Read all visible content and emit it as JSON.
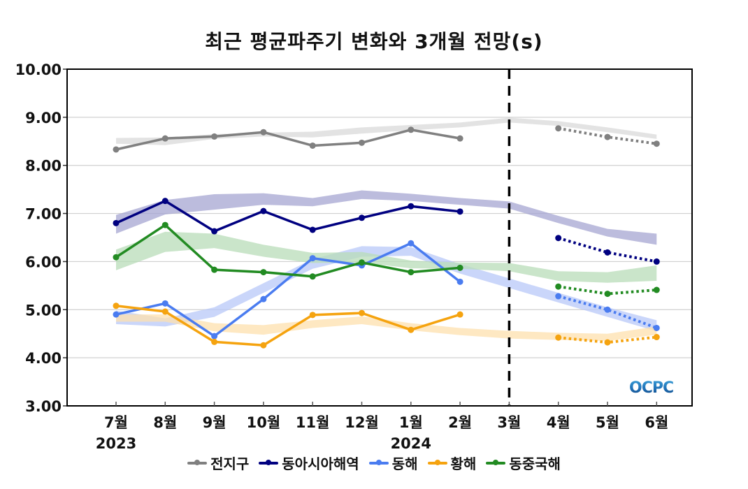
{
  "chart_data": {
    "type": "line",
    "title": "최근 평균파주기 변화와 3개월 전망(s)",
    "xlabel": "",
    "ylabel": "",
    "ylim": [
      3.0,
      10.0
    ],
    "yticks": [
      "3.00",
      "4.00",
      "5.00",
      "6.00",
      "7.00",
      "8.00",
      "9.00",
      "10.00"
    ],
    "categories": [
      "7월",
      "8월",
      "9월",
      "10월",
      "11월",
      "12월",
      "1월",
      "2월",
      "3월",
      "4월",
      "5월",
      "6월"
    ],
    "year_labels": [
      {
        "label": "2023",
        "at_category": "7월"
      },
      {
        "label": "2024",
        "at_category": "1월"
      }
    ],
    "forecast_divider_at": "3월",
    "grid": true,
    "legend_position": "bottom",
    "series": [
      {
        "name": "전지구",
        "color": "#808080",
        "band_color": "#d9d9d9",
        "observed": [
          8.33,
          8.56,
          8.6,
          8.69,
          8.41,
          8.47,
          8.74,
          8.56,
          null,
          null,
          null,
          null
        ],
        "forecast": [
          null,
          null,
          null,
          null,
          null,
          null,
          null,
          null,
          null,
          8.77,
          8.59,
          8.45
        ],
        "band_upper": [
          8.57,
          8.58,
          8.65,
          8.68,
          8.7,
          8.79,
          8.84,
          8.89,
          8.99,
          8.92,
          8.79,
          8.64
        ],
        "band_lower": [
          8.45,
          8.42,
          8.55,
          8.6,
          8.58,
          8.66,
          8.73,
          8.79,
          8.89,
          8.82,
          8.69,
          8.55
        ]
      },
      {
        "name": "동아시아해역",
        "color": "#000080",
        "band_color": "#a5a5d2",
        "observed": [
          6.8,
          7.26,
          6.63,
          7.05,
          6.66,
          6.91,
          7.15,
          7.04,
          null,
          null,
          null,
          null
        ],
        "forecast": [
          null,
          null,
          null,
          null,
          null,
          null,
          null,
          null,
          null,
          6.49,
          6.19,
          6.0
        ],
        "band_upper": [
          6.97,
          7.28,
          7.4,
          7.42,
          7.32,
          7.48,
          7.41,
          7.32,
          7.25,
          6.95,
          6.68,
          6.58
        ],
        "band_lower": [
          6.58,
          6.98,
          7.08,
          7.18,
          7.15,
          7.3,
          7.26,
          7.18,
          7.1,
          6.8,
          6.52,
          6.35
        ]
      },
      {
        "name": "동해",
        "color": "#4a7cf0",
        "band_color": "#b8c8f8",
        "observed": [
          4.9,
          5.13,
          4.45,
          5.22,
          6.07,
          5.92,
          6.38,
          5.58,
          null,
          null,
          null,
          null
        ],
        "forecast": [
          null,
          null,
          null,
          null,
          null,
          null,
          null,
          null,
          null,
          5.28,
          5.0,
          4.62
        ],
        "band_upper": [
          4.98,
          4.82,
          5.05,
          5.55,
          6.05,
          6.32,
          6.3,
          5.95,
          5.65,
          5.35,
          5.05,
          4.78
        ],
        "band_lower": [
          4.7,
          4.65,
          4.85,
          5.35,
          5.85,
          6.1,
          6.12,
          5.75,
          5.45,
          5.15,
          4.85,
          4.55
        ]
      },
      {
        "name": "황해",
        "color": "#f5a30f",
        "band_color": "#fde0ae",
        "observed": [
          5.08,
          4.96,
          4.33,
          4.26,
          4.89,
          4.93,
          4.58,
          4.9,
          null,
          null,
          null,
          null
        ],
        "forecast": [
          null,
          null,
          null,
          null,
          null,
          null,
          null,
          null,
          null,
          4.42,
          4.32,
          4.43
        ],
        "band_upper": [
          4.9,
          4.9,
          4.72,
          4.68,
          4.78,
          4.86,
          4.72,
          4.62,
          4.56,
          4.52,
          4.5,
          4.65
        ],
        "band_lower": [
          4.75,
          4.75,
          4.55,
          4.48,
          4.62,
          4.7,
          4.57,
          4.47,
          4.4,
          4.37,
          4.35,
          4.48
        ]
      },
      {
        "name": "동중국해",
        "color": "#228b22",
        "band_color": "#b8dcb8",
        "observed": [
          6.09,
          6.76,
          5.83,
          5.78,
          5.69,
          5.98,
          5.78,
          5.87,
          null,
          null,
          null,
          null
        ],
        "forecast": [
          null,
          null,
          null,
          null,
          null,
          null,
          null,
          null,
          null,
          5.48,
          5.33,
          5.41
        ],
        "band_upper": [
          6.25,
          6.62,
          6.58,
          6.35,
          6.18,
          6.2,
          6.02,
          5.98,
          5.97,
          5.8,
          5.78,
          5.92
        ],
        "band_lower": [
          5.82,
          6.2,
          6.28,
          6.1,
          5.97,
          5.98,
          5.86,
          5.85,
          5.8,
          5.6,
          5.56,
          5.6
        ]
      }
    ]
  },
  "logo_text": "OCPC"
}
